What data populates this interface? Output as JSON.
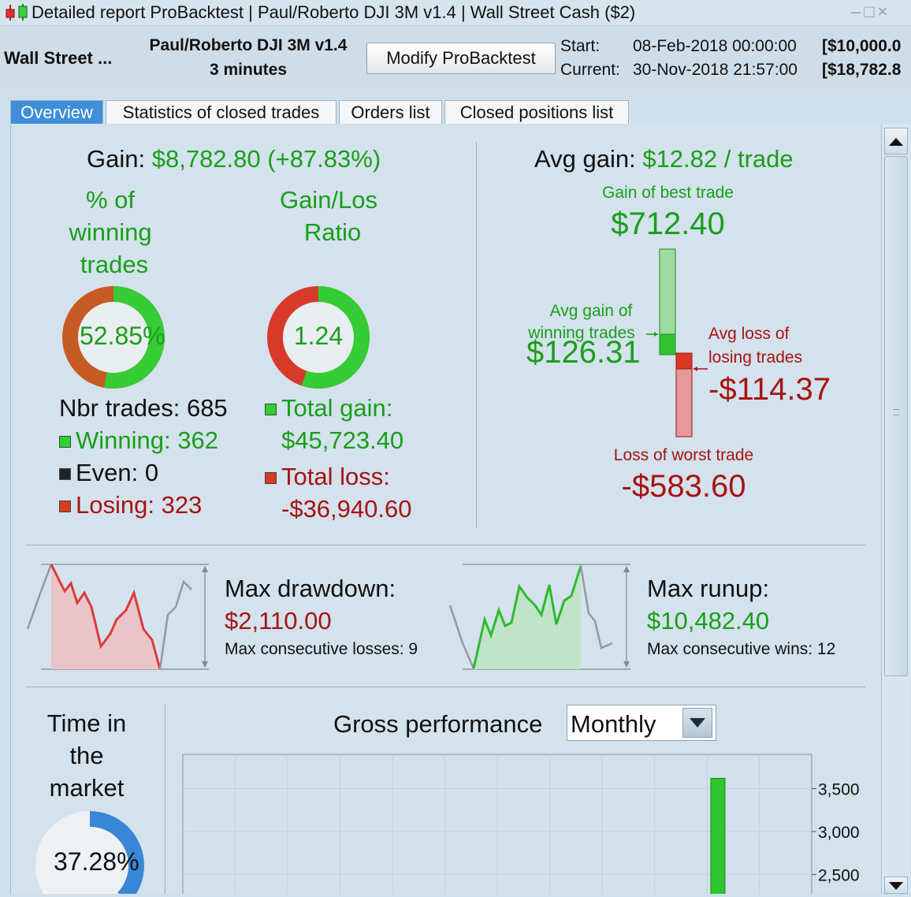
{
  "window": {
    "title": "Detailed report ProBacktest | Paul/Roberto DJI 3M v1.4 | Wall Street Cash ($2)",
    "controls": [
      "–",
      "□",
      "×"
    ]
  },
  "header": {
    "instrument": "Wall Street ...",
    "system_name": "Paul/Roberto DJI 3M v1.4",
    "timeframe": "3 minutes",
    "modify_button": "Modify ProBacktest",
    "start_label": "Start:",
    "start_date": "08-Feb-2018 00:00:00",
    "start_capital": "[$10,000.0",
    "current_label": "Current:",
    "current_date": "30-Nov-2018 21:57:00",
    "current_capital": "[$18,782.8"
  },
  "tabs": [
    "Overview",
    "Statistics of closed trades",
    "Orders list",
    "Closed positions list"
  ],
  "overview": {
    "gain_label": "Gain:",
    "gain_value": "$8,782.80",
    "gain_pct": "(+87.83%)",
    "winning_pct_title_1": "% of",
    "winning_pct_title_2": "winning",
    "winning_pct_title_3": "trades",
    "winning_pct_value": "52.85%",
    "winning_pct_fraction": 0.5285,
    "gl_ratio_title_1": "Gain/Los",
    "gl_ratio_title_2": "Ratio",
    "gl_ratio_value": "1.24",
    "gl_ratio_fraction": 0.553,
    "nbr_trades": "Nbr trades: 685",
    "winning": "Winning: 362",
    "even": "Even: 0",
    "losing": "Losing: 323",
    "total_gain_label": "Total gain:",
    "total_gain_value": "$45,723.40",
    "total_loss_label": "Total loss:",
    "total_loss_value": "-$36,940.60",
    "avg_gain_label": "Avg gain:",
    "avg_gain_value": "$12.82 / trade",
    "best_trade_label": "Gain of best trade",
    "best_trade_value": "$712.40",
    "avg_win_label_1": "Avg gain of",
    "avg_win_label_2": "winning trades",
    "avg_win_value": "$126.31",
    "avg_loss_label_1": "Avg loss of",
    "avg_loss_label_2": "losing trades",
    "avg_loss_value": "-$114.37",
    "worst_trade_label": "Loss of worst trade",
    "worst_trade_value": "-$583.60",
    "max_drawdown_label": "Max drawdown:",
    "max_drawdown_value": "$2,110.00",
    "max_cons_losses": "Max consecutive losses: 9",
    "max_runup_label": "Max runup:",
    "max_runup_value": "$10,482.40",
    "max_cons_wins": "Max consecutive wins: 12",
    "time_in_market_1": "Time in",
    "time_in_market_2": "the",
    "time_in_market_3": "market",
    "time_in_market_value": "37.28%",
    "time_in_market_fraction": 0.3728,
    "gross_perf_label": "Gross performance",
    "gross_perf_period": "Monthly"
  },
  "chart_data": {
    "type": "bar",
    "title": "Gross performance",
    "ylim": [
      2200,
      3900
    ],
    "yticks": [
      "3,500",
      "3,000",
      "2,500"
    ],
    "ytick_values": [
      3500,
      3000,
      2500
    ],
    "visible_bar_value": 3620,
    "grid": true
  },
  "colors": {
    "green": "#1a9e1a",
    "red": "#a81212",
    "tab_active": "#3f8ed8",
    "background": "#d3e2ec"
  }
}
